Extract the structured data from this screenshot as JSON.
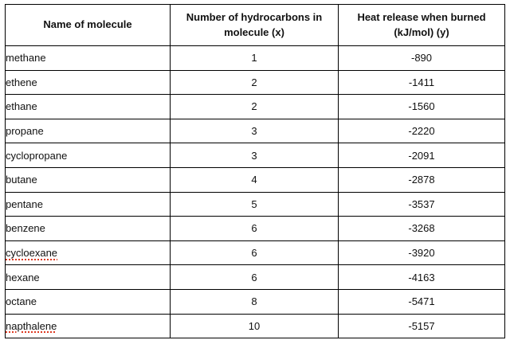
{
  "table": {
    "columns": [
      {
        "label": "Name of molecule"
      },
      {
        "label": "Number of hydrocarbons in molecule (x)"
      },
      {
        "label": "Heat release when burned (kJ/mol) (y)"
      }
    ],
    "rows": [
      {
        "name": "methane",
        "x": "1",
        "y": "-890",
        "misspelled": false
      },
      {
        "name": "ethene",
        "x": "2",
        "y": "-1411",
        "misspelled": false
      },
      {
        "name": "ethane",
        "x": "2",
        "y": "-1560",
        "misspelled": false
      },
      {
        "name": "propane",
        "x": "3",
        "y": "-2220",
        "misspelled": false
      },
      {
        "name": "cyclopropane",
        "x": "3",
        "y": "-2091",
        "misspelled": false
      },
      {
        "name": "butane",
        "x": "4",
        "y": "-2878",
        "misspelled": false
      },
      {
        "name": "pentane",
        "x": "5",
        "y": "-3537",
        "misspelled": false
      },
      {
        "name": "benzene",
        "x": "6",
        "y": "-3268",
        "misspelled": false
      },
      {
        "name": "cycloexane",
        "x": "6",
        "y": "-3920",
        "misspelled": true
      },
      {
        "name": "hexane",
        "x": "6",
        "y": "-4163",
        "misspelled": false
      },
      {
        "name": "octane",
        "x": "8",
        "y": "-5471",
        "misspelled": false
      },
      {
        "name": "napthalene",
        "x": "10",
        "y": "-5157",
        "misspelled": true
      }
    ]
  },
  "colors": {
    "border": "#000000",
    "text": "#111111",
    "spellcheck_underline": "#dd3a22",
    "background": "#ffffff"
  },
  "chart_data": {
    "type": "table",
    "title": "",
    "columns": [
      "Name of molecule",
      "Number of hydrocarbons in molecule (x)",
      "Heat release when burned (kJ/mol) (y)"
    ],
    "x": [
      1,
      2,
      2,
      3,
      3,
      4,
      5,
      6,
      6,
      6,
      8,
      10
    ],
    "y": [
      -890,
      -1411,
      -1560,
      -2220,
      -2091,
      -2878,
      -3537,
      -3268,
      -3920,
      -4163,
      -5471,
      -5157
    ],
    "categories": [
      "methane",
      "ethene",
      "ethane",
      "propane",
      "cyclopropane",
      "butane",
      "pentane",
      "benzene",
      "cycloexane",
      "hexane",
      "octane",
      "napthalene"
    ]
  }
}
